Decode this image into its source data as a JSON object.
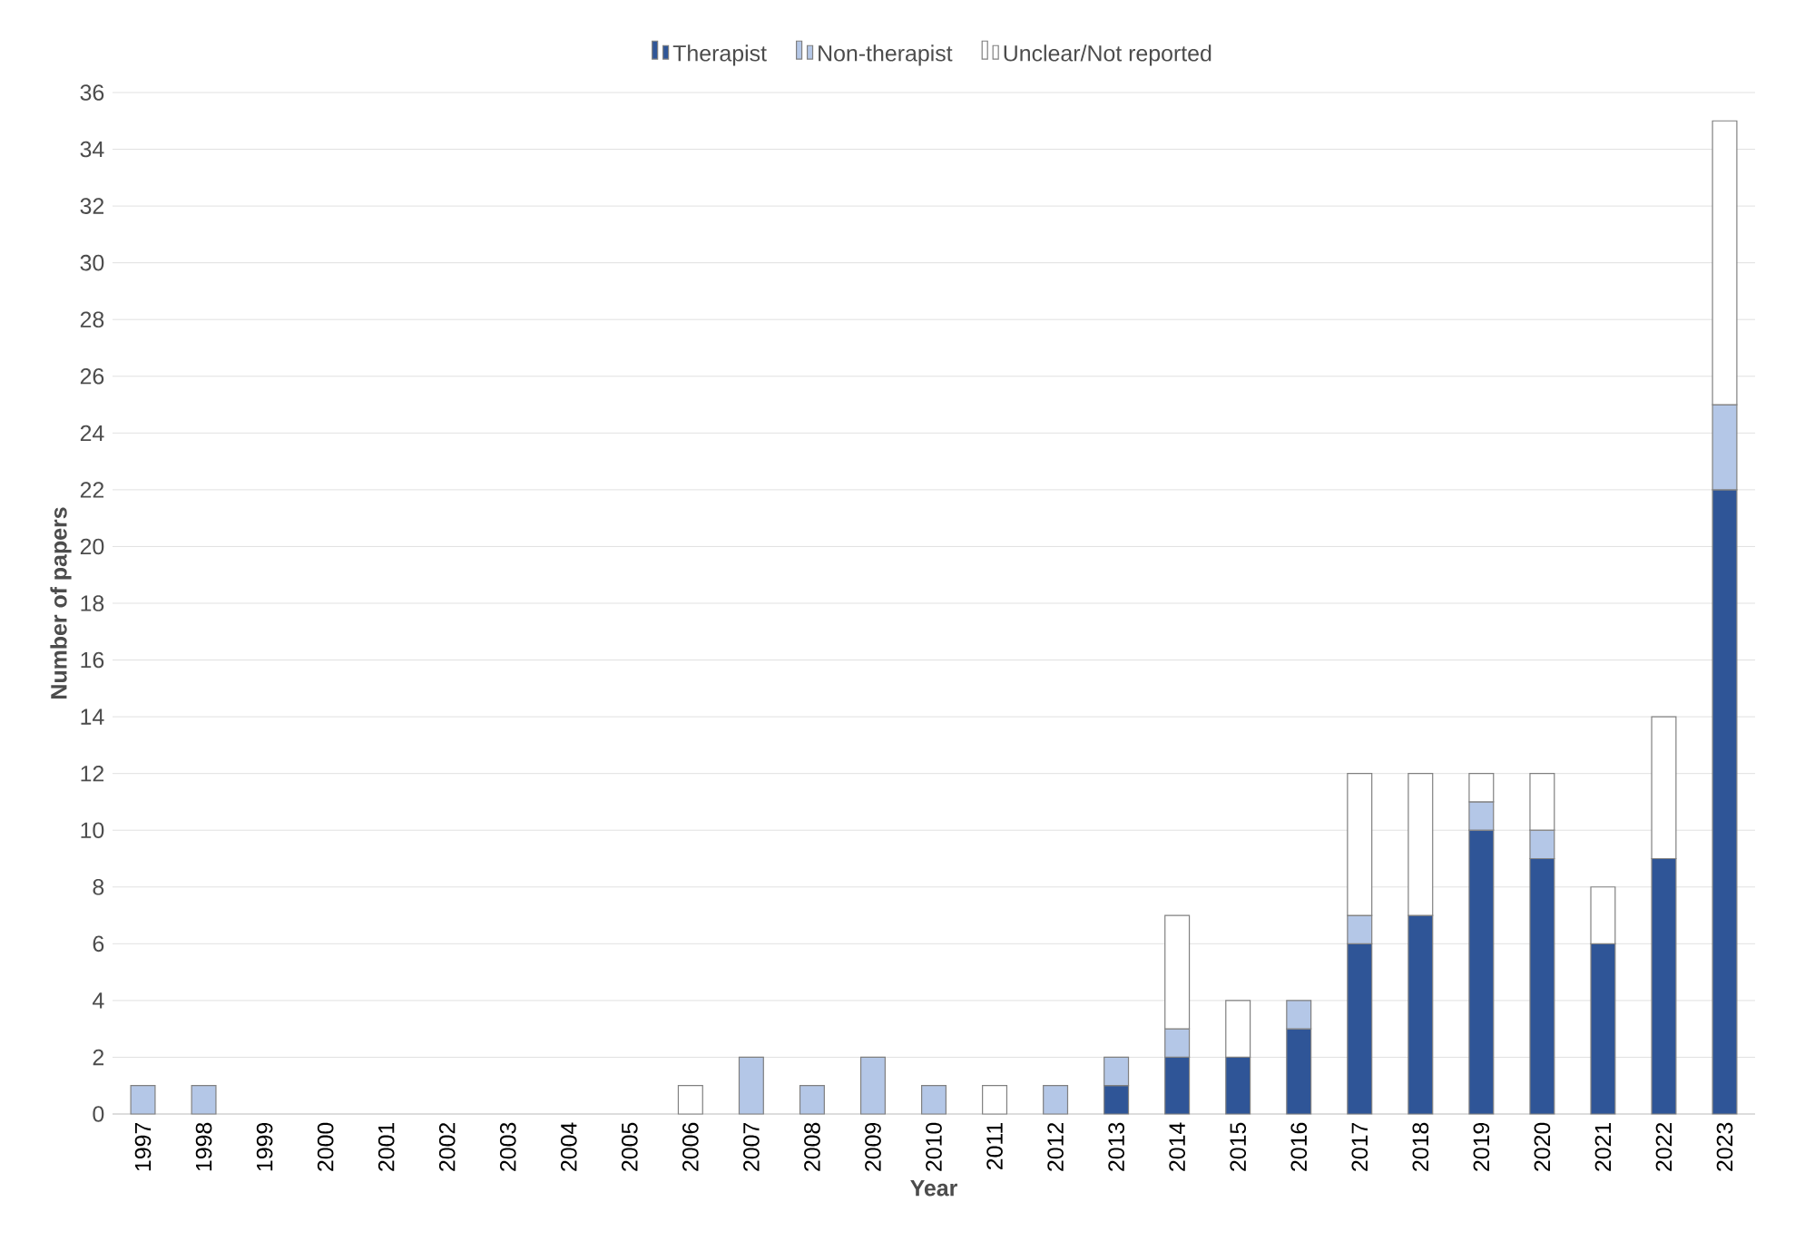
{
  "chart_data": {
    "type": "bar",
    "stacked": true,
    "xlabel": "Year",
    "ylabel": "Number of papers",
    "categories": [
      "1997",
      "1998",
      "1999",
      "2000",
      "2001",
      "2002",
      "2003",
      "2004",
      "2005",
      "2006",
      "2007",
      "2008",
      "2009",
      "2010",
      "2011",
      "2012",
      "2013",
      "2014",
      "2015",
      "2016",
      "2017",
      "2018",
      "2019",
      "2020",
      "2021",
      "2022",
      "2023"
    ],
    "series": [
      {
        "name": "Therapist",
        "color": "#2f5597",
        "values": [
          0,
          0,
          0,
          0,
          0,
          0,
          0,
          0,
          0,
          0,
          0,
          0,
          0,
          0,
          0,
          0,
          1,
          2,
          2,
          3,
          6,
          7,
          10,
          9,
          6,
          9,
          22
        ]
      },
      {
        "name": "Non-therapist",
        "color": "#b4c7e7",
        "values": [
          1,
          1,
          0,
          0,
          0,
          0,
          0,
          0,
          0,
          0,
          2,
          1,
          2,
          1,
          0,
          1,
          1,
          1,
          0,
          1,
          1,
          0,
          1,
          1,
          0,
          0,
          3
        ]
      },
      {
        "name": "Unclear/Not reported",
        "color": "#ffffff",
        "values": [
          0,
          0,
          0,
          0,
          0,
          0,
          0,
          0,
          0,
          1,
          0,
          0,
          0,
          0,
          1,
          0,
          0,
          4,
          2,
          0,
          5,
          5,
          1,
          2,
          2,
          5,
          10
        ]
      }
    ],
    "ylim": [
      0,
      36
    ],
    "yticks": [
      0,
      2,
      4,
      6,
      8,
      10,
      12,
      14,
      16,
      18,
      20,
      22,
      24,
      26,
      28,
      30,
      32,
      34,
      36
    ],
    "grid": "y",
    "legend": "top"
  }
}
